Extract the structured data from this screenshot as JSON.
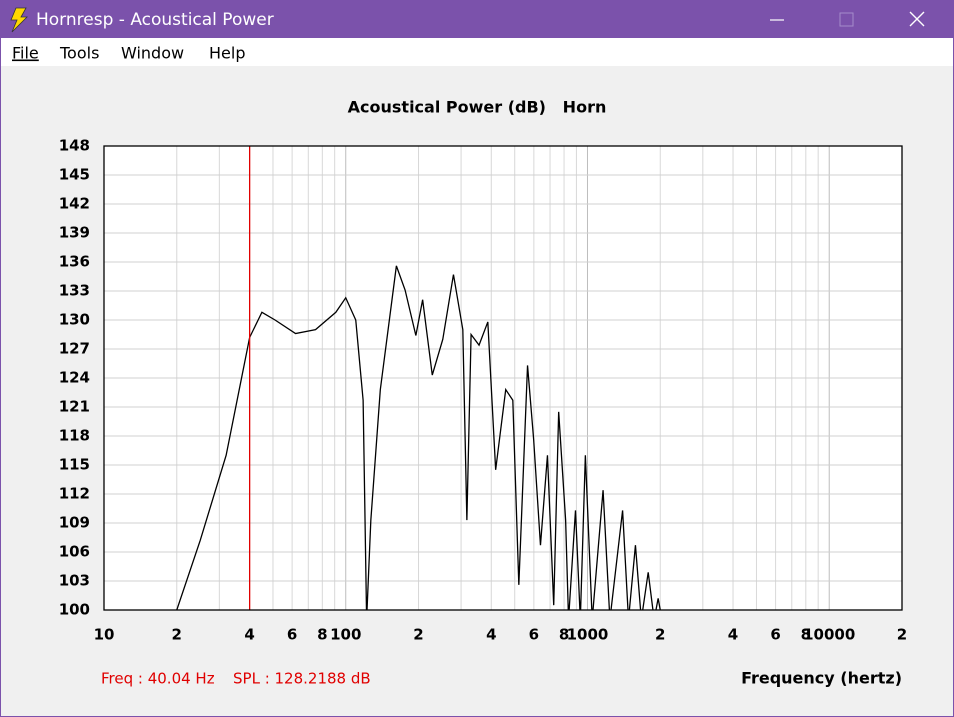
{
  "window": {
    "title": "Hornresp - Acoustical Power"
  },
  "menu": [
    "File",
    "Tools",
    "Window",
    "Help"
  ],
  "chart_data": {
    "type": "line",
    "title": "Acoustical Power (dB)   Horn",
    "x_label": "Frequency (hertz)",
    "x_log": true,
    "grid": true,
    "xlim": [
      10,
      20000
    ],
    "xticks": [
      10,
      {
        "value": 20,
        "label": "2"
      },
      {
        "value": 40,
        "label": "4"
      },
      {
        "value": 60,
        "label": "6"
      },
      {
        "value": 80,
        "label": "8"
      },
      100,
      {
        "value": 200,
        "label": "2"
      },
      {
        "value": 400,
        "label": "4"
      },
      {
        "value": 600,
        "label": "6"
      },
      {
        "value": 800,
        "label": "8"
      },
      1000,
      {
        "value": 2000,
        "label": "2"
      },
      {
        "value": 4000,
        "label": "4"
      },
      {
        "value": 6000,
        "label": "6"
      },
      {
        "value": 8000,
        "label": "8"
      },
      10000,
      {
        "value": 20000,
        "label": "2"
      }
    ],
    "xminor_ticks": [
      30,
      50,
      70,
      90,
      300,
      500,
      700,
      900,
      3000,
      5000,
      7000,
      9000
    ],
    "ylim": [
      100,
      148
    ],
    "yticks": [
      100,
      103,
      106,
      109,
      112,
      115,
      118,
      121,
      124,
      127,
      130,
      133,
      136,
      139,
      142,
      145,
      148
    ],
    "series": [
      {
        "name": "Horn",
        "color": "#000000",
        "x": [
          20,
          25,
          32,
          40.04,
          45,
          51,
          62,
          75,
          91,
          100,
          110,
          118,
          122,
          127,
          139,
          162,
          176,
          195,
          208,
          228,
          252,
          279,
          305,
          317,
          330,
          356,
          387,
          417,
          459,
          491,
          520,
          565,
          599,
          639,
          683,
          725,
          760,
          812,
          835,
          892,
          934,
          980,
          1046,
          1160,
          1238,
          1397,
          1478,
          1579,
          1670,
          1783,
          1887,
          1960,
          2034,
          2100
        ],
        "values": [
          100,
          107.2,
          116,
          128.2,
          130.8,
          130,
          128.6,
          129,
          130.8,
          132.3,
          130,
          121.7,
          99,
          109.3,
          122.8,
          135.6,
          133.1,
          128.4,
          132.1,
          124.3,
          128,
          134.7,
          129,
          109.3,
          128.5,
          127.4,
          129.8,
          114.5,
          122.8,
          121.7,
          102.6,
          125.3,
          117.6,
          106.7,
          116,
          100.5,
          120.5,
          109.3,
          99,
          110.3,
          99,
          116,
          99,
          112.4,
          99,
          110.3,
          99,
          106.7,
          99,
          103.9,
          99,
          101.2,
          99,
          99
        ]
      }
    ],
    "marker": {
      "x": 40.04,
      "color": "#e00000"
    },
    "status_freq": "Freq : 40.04 Hz",
    "status_spl": "SPL : 128.2188 dB"
  }
}
